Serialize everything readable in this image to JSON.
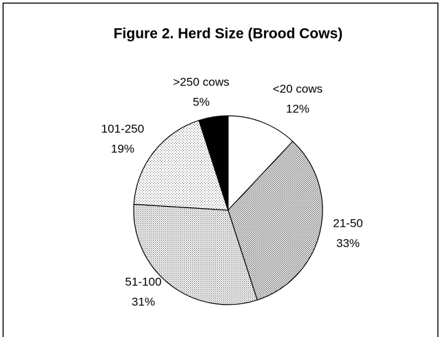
{
  "chart_data": {
    "type": "pie",
    "title": "Figure 2. Herd Size (Brood Cows)",
    "categories": [
      "<20 cows",
      "21-50",
      "51-100",
      "101-250",
      ">250 cows"
    ],
    "values": [
      12,
      33,
      31,
      19,
      5
    ],
    "value_labels": [
      "12%",
      "33%",
      "31%",
      "19%",
      "5%"
    ]
  }
}
